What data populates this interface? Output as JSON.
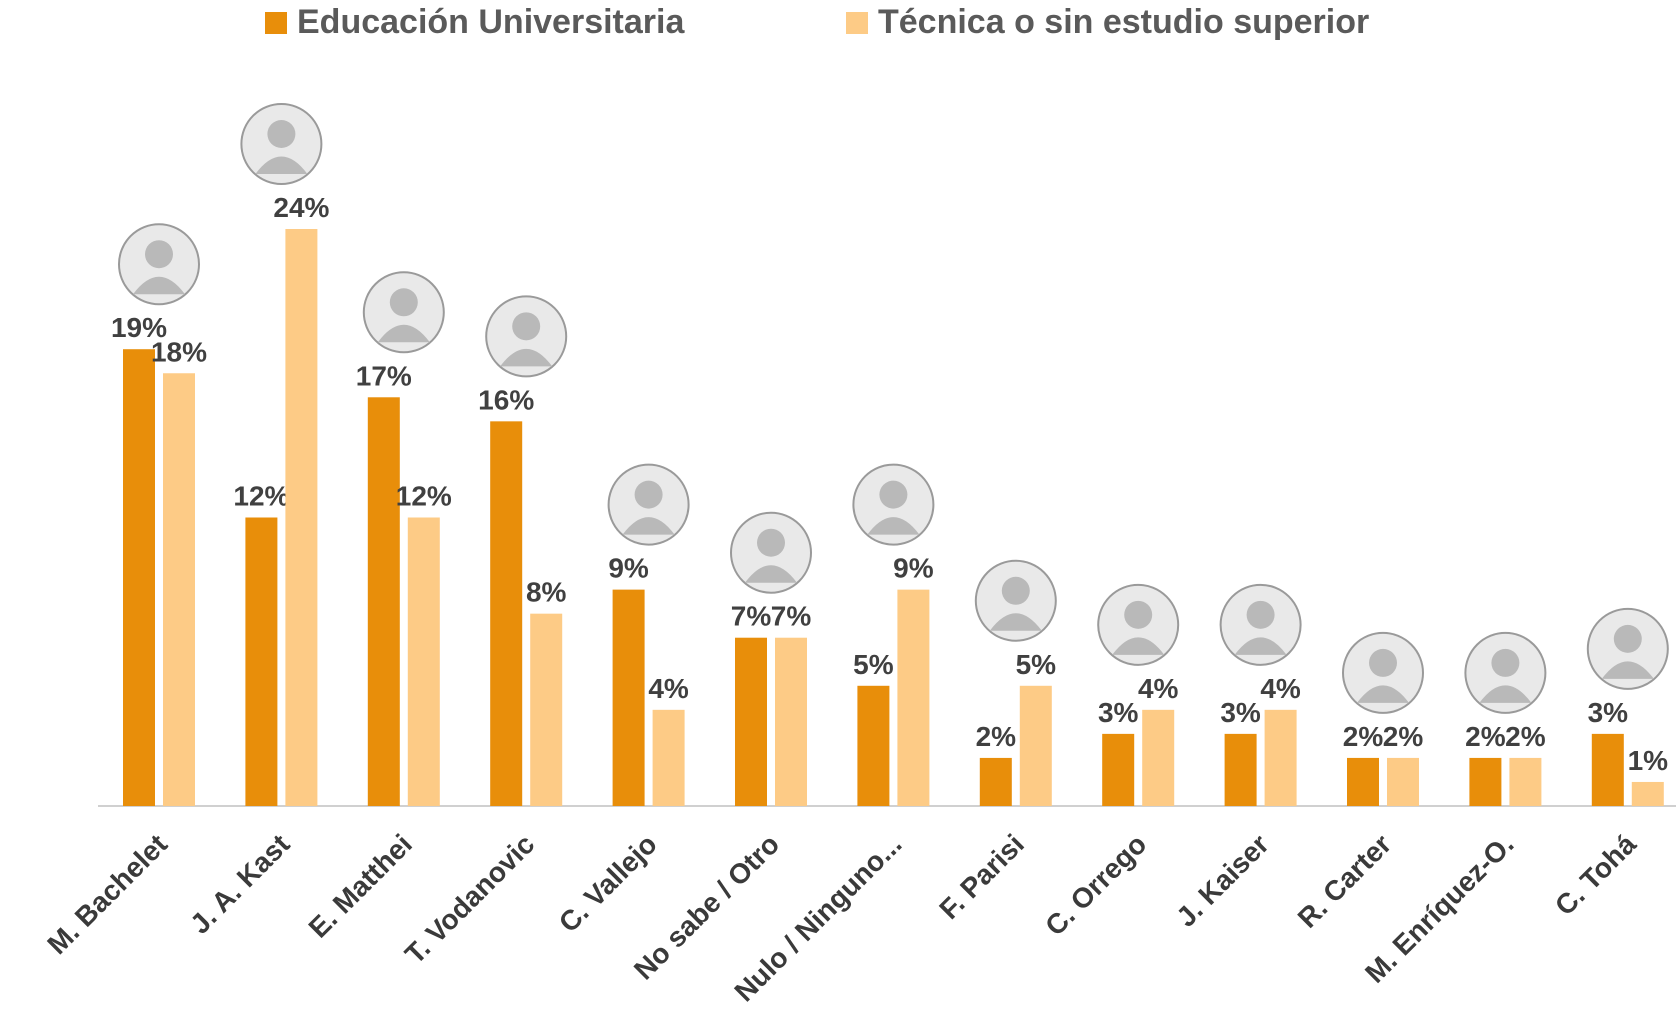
{
  "chart_data": {
    "type": "bar",
    "categories": [
      "M. Bachelet",
      "J. A. Kast",
      "E. Matthei",
      "T. Vodanovic",
      "C. Vallejo",
      "No sabe / Otro",
      "Nulo / Ninguno...",
      "F. Parisi",
      "C. Orrego",
      "J. Kaiser",
      "R. Carter",
      "M. Enríquez-O.",
      "C. Tohá"
    ],
    "series": [
      {
        "name": "Educación Universitaria",
        "color": "#e88e0a",
        "values": [
          19,
          12,
          17,
          16,
          9,
          7,
          5,
          2,
          3,
          3,
          2,
          2,
          3
        ],
        "value_labels": [
          "19%",
          "12%",
          "17%",
          "16%",
          "9%",
          "7%",
          "5%",
          "2%",
          "3%",
          "3%",
          "2%",
          "2%",
          "3%"
        ]
      },
      {
        "name": "Técnica o sin estudio superior",
        "color": "#fdcb86",
        "values": [
          18,
          24,
          12,
          8,
          4,
          7,
          9,
          5,
          4,
          4,
          2,
          2,
          1
        ],
        "value_labels": [
          "18%",
          "24%",
          "12%",
          "8%",
          "4%",
          "7%",
          "9%",
          "5%",
          "4%",
          "4%",
          "2%",
          "2%",
          "1%"
        ]
      }
    ]
  }
}
